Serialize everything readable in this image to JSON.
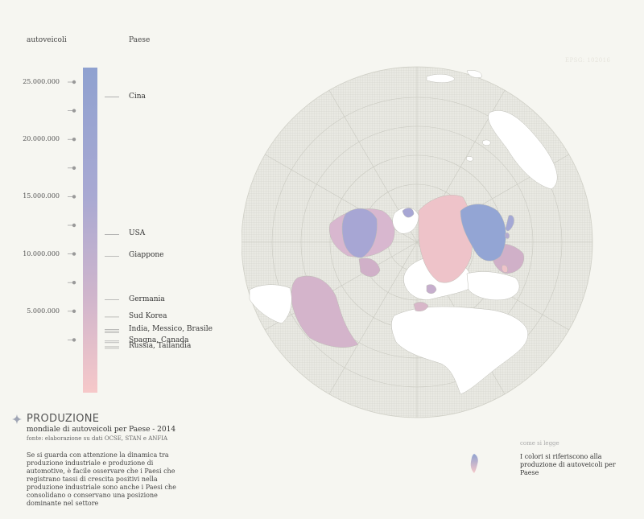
{
  "headers": {
    "left": "autoveicoli",
    "right": "Paese"
  },
  "scale": {
    "ticks": [
      {
        "label": "25.000.000",
        "value": 25000000
      },
      {
        "label": "",
        "value": 22500000
      },
      {
        "label": "20.000.000",
        "value": 20000000
      },
      {
        "label": "",
        "value": 17500000
      },
      {
        "label": "15.000.000",
        "value": 15000000
      },
      {
        "label": "",
        "value": 12500000
      },
      {
        "label": "10.000.000",
        "value": 10000000
      },
      {
        "label": "",
        "value": 7500000
      },
      {
        "label": "5.000.000",
        "value": 5000000
      },
      {
        "label": "",
        "value": 2500000
      }
    ],
    "gradient_top_color": "#8fa1d0",
    "gradient_bottom_color": "#f6c8c9"
  },
  "countries": [
    {
      "label": "Cina",
      "value": 23700000
    },
    {
      "label": "USA",
      "value": 11700000
    },
    {
      "label": "Giappone",
      "value": 9800000
    },
    {
      "label": "Germania",
      "value": 6000000
    },
    {
      "label": "Sud Korea",
      "value": 4500000
    },
    {
      "label": "India, Messico, Brasile",
      "value": 3400000
    },
    {
      "label": "Spagna, Canada",
      "value": 2400000
    },
    {
      "label": "Russia, Tailandia",
      "value": 1900000
    }
  ],
  "map": {
    "projection_label": "EPSG: 102016"
  },
  "info": {
    "title": "PRODUZIONE",
    "subtitle": "mondiale di autoveicoli per Paese - 2014",
    "source": "fonte: elaborazione su dati OCSE, STAN e ANFIA",
    "description": "Se si guarda con attenzione la dinamica tra produzione industriale e produzione di automotive, è facile osservare che i Paesi che registrano tassi di crescita positivi nella produzione industriale sono anche i Paesi che consolidano o conservano una posizione dominante nel settore"
  },
  "legend": {
    "title": "come si legge",
    "text": "I colori si riferiscono alla produzione di autoveicoli per Paese"
  }
}
